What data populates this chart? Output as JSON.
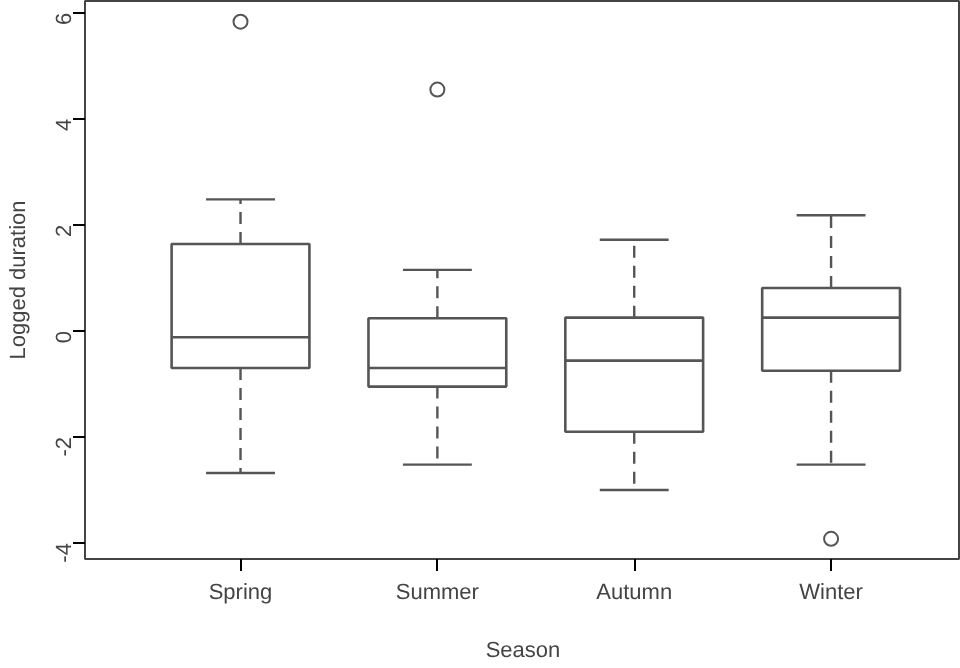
{
  "chart_data": {
    "type": "box",
    "xlabel": "Season",
    "ylabel": "Logged duration",
    "categories": [
      "Spring",
      "Summer",
      "Autumn",
      "Winter"
    ],
    "boxes": [
      {
        "low": -2.68,
        "q1": -0.7,
        "median": -0.12,
        "q3": 1.64,
        "high": 2.48,
        "outliers": [
          5.83
        ]
      },
      {
        "low": -2.52,
        "q1": -1.05,
        "median": -0.7,
        "q3": 0.24,
        "high": 1.15,
        "outliers": [
          4.55
        ]
      },
      {
        "low": -3.0,
        "q1": -1.9,
        "median": -0.56,
        "q3": 0.25,
        "high": 1.72
      },
      {
        "low": -2.52,
        "q1": -0.75,
        "median": 0.25,
        "q3": 0.81,
        "high": 2.18,
        "outliers": [
          -3.92
        ]
      }
    ],
    "color": "#555555",
    "ylim": [
      -4.3,
      6.22
    ],
    "yticks": [
      -4,
      -2,
      0,
      2,
      4,
      6
    ],
    "grid": false
  }
}
